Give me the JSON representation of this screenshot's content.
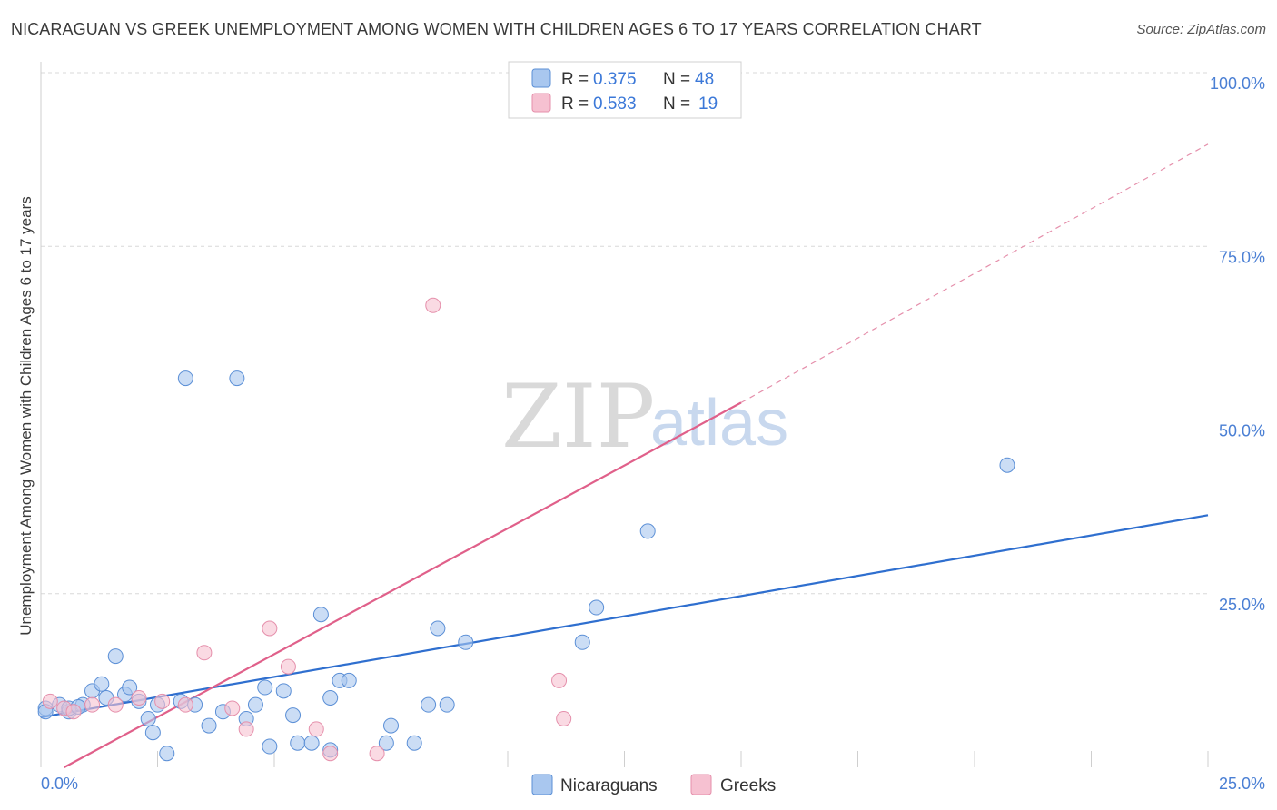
{
  "header": {
    "title": "NICARAGUAN VS GREEK UNEMPLOYMENT AMONG WOMEN WITH CHILDREN AGES 6 TO 17 YEARS CORRELATION CHART",
    "source": "Source: ZipAtlas.com"
  },
  "watermark": {
    "zip": "ZIP",
    "atlas": "atlas"
  },
  "colors": {
    "blue_fill": "#a9c7ef",
    "blue_stroke": "#5b8fd6",
    "blue_line": "#2f6fcf",
    "pink_fill": "#f6c1d1",
    "pink_stroke": "#e58fab",
    "pink_line": "#e0608a",
    "grid": "#d8d8d8",
    "tick_text": "#4a7fd4"
  },
  "legend": {
    "rows": [
      {
        "r_label": "R =",
        "r_value": "0.375",
        "n_label": "N =",
        "n_value": "48",
        "series": "Nicaraguans"
      },
      {
        "r_label": "R =",
        "r_value": "0.583",
        "n_label": "N =",
        "n_value": "19",
        "series": "Greeks"
      }
    ]
  },
  "chart_data": {
    "type": "scatter",
    "title": "NICARAGUAN VS GREEK UNEMPLOYMENT AMONG WOMEN WITH CHILDREN AGES 6 TO 17 YEARS CORRELATION CHART",
    "ylabel": "Unemployment Among Women with Children Ages 6 to 17 years",
    "xlabel": "",
    "xlim": [
      0,
      25
    ],
    "ylim": [
      0,
      100
    ],
    "x_tick_labels": [
      "0.0%",
      "25.0%"
    ],
    "y_tick_labels": [
      "100.0%",
      "75.0%",
      "50.0%",
      "25.0%"
    ],
    "y_ticks": [
      100,
      75,
      50,
      25
    ],
    "grid": true,
    "legend_position": "bottom-center",
    "series": [
      {
        "name": "Nicaraguans",
        "R": 0.375,
        "N": 48,
        "trend": {
          "x": [
            0,
            25
          ],
          "y": [
            7.2,
            36.3
          ],
          "style": "solid"
        },
        "points": [
          {
            "x": 0.1,
            "y": 8.5
          },
          {
            "x": 0.4,
            "y": 9.0
          },
          {
            "x": 0.6,
            "y": 8.0
          },
          {
            "x": 0.9,
            "y": 9.0
          },
          {
            "x": 1.1,
            "y": 11.0
          },
          {
            "x": 1.3,
            "y": 12.0
          },
          {
            "x": 1.4,
            "y": 10.0
          },
          {
            "x": 1.6,
            "y": 16.0
          },
          {
            "x": 1.8,
            "y": 10.5
          },
          {
            "x": 1.9,
            "y": 11.5
          },
          {
            "x": 2.1,
            "y": 9.5
          },
          {
            "x": 2.3,
            "y": 7.0
          },
          {
            "x": 2.4,
            "y": 5.0
          },
          {
            "x": 2.5,
            "y": 9.0
          },
          {
            "x": 2.7,
            "y": 2.0
          },
          {
            "x": 3.0,
            "y": 9.5
          },
          {
            "x": 3.1,
            "y": 56.0
          },
          {
            "x": 3.3,
            "y": 9.0
          },
          {
            "x": 3.6,
            "y": 6.0
          },
          {
            "x": 3.9,
            "y": 8.0
          },
          {
            "x": 4.2,
            "y": 56.0
          },
          {
            "x": 4.4,
            "y": 7.0
          },
          {
            "x": 4.6,
            "y": 9.0
          },
          {
            "x": 4.8,
            "y": 11.5
          },
          {
            "x": 4.9,
            "y": 3.0
          },
          {
            "x": 5.2,
            "y": 11.0
          },
          {
            "x": 5.4,
            "y": 7.5
          },
          {
            "x": 5.5,
            "y": 3.5
          },
          {
            "x": 5.8,
            "y": 3.5
          },
          {
            "x": 6.0,
            "y": 22.0
          },
          {
            "x": 6.2,
            "y": 2.5
          },
          {
            "x": 6.2,
            "y": 10.0
          },
          {
            "x": 6.4,
            "y": 12.5
          },
          {
            "x": 6.6,
            "y": 12.5
          },
          {
            "x": 7.4,
            "y": 3.5
          },
          {
            "x": 7.5,
            "y": 6.0
          },
          {
            "x": 8.0,
            "y": 3.5
          },
          {
            "x": 8.3,
            "y": 9.0
          },
          {
            "x": 8.5,
            "y": 20.0
          },
          {
            "x": 8.7,
            "y": 9.0
          },
          {
            "x": 9.1,
            "y": 18.0
          },
          {
            "x": 11.6,
            "y": 18.0
          },
          {
            "x": 11.9,
            "y": 23.0
          },
          {
            "x": 13.0,
            "y": 34.0
          },
          {
            "x": 20.7,
            "y": 43.5
          },
          {
            "x": 0.1,
            "y": 8.0
          },
          {
            "x": 0.6,
            "y": 8.5
          },
          {
            "x": 0.8,
            "y": 8.7
          }
        ]
      },
      {
        "name": "Greeks",
        "R": 0.583,
        "N": 19,
        "trend": {
          "x": [
            0.5,
            15
          ],
          "y": [
            0,
            52.5
          ],
          "style": "solid",
          "extension": {
            "x": [
              15,
              25
            ],
            "y": [
              52.5,
              89.7
            ],
            "style": "dashed"
          }
        },
        "points": [
          {
            "x": 0.2,
            "y": 9.5
          },
          {
            "x": 0.5,
            "y": 8.5
          },
          {
            "x": 0.7,
            "y": 8.0
          },
          {
            "x": 1.1,
            "y": 9.0
          },
          {
            "x": 1.6,
            "y": 9.0
          },
          {
            "x": 2.1,
            "y": 10.0
          },
          {
            "x": 2.6,
            "y": 9.5
          },
          {
            "x": 3.1,
            "y": 9.0
          },
          {
            "x": 3.5,
            "y": 16.5
          },
          {
            "x": 4.1,
            "y": 8.5
          },
          {
            "x": 4.4,
            "y": 5.5
          },
          {
            "x": 4.9,
            "y": 20.0
          },
          {
            "x": 5.3,
            "y": 14.5
          },
          {
            "x": 5.9,
            "y": 5.5
          },
          {
            "x": 6.2,
            "y": 2.0
          },
          {
            "x": 7.2,
            "y": 2.0
          },
          {
            "x": 8.4,
            "y": 66.5
          },
          {
            "x": 11.1,
            "y": 12.5
          },
          {
            "x": 11.2,
            "y": 7.0
          }
        ]
      }
    ]
  }
}
